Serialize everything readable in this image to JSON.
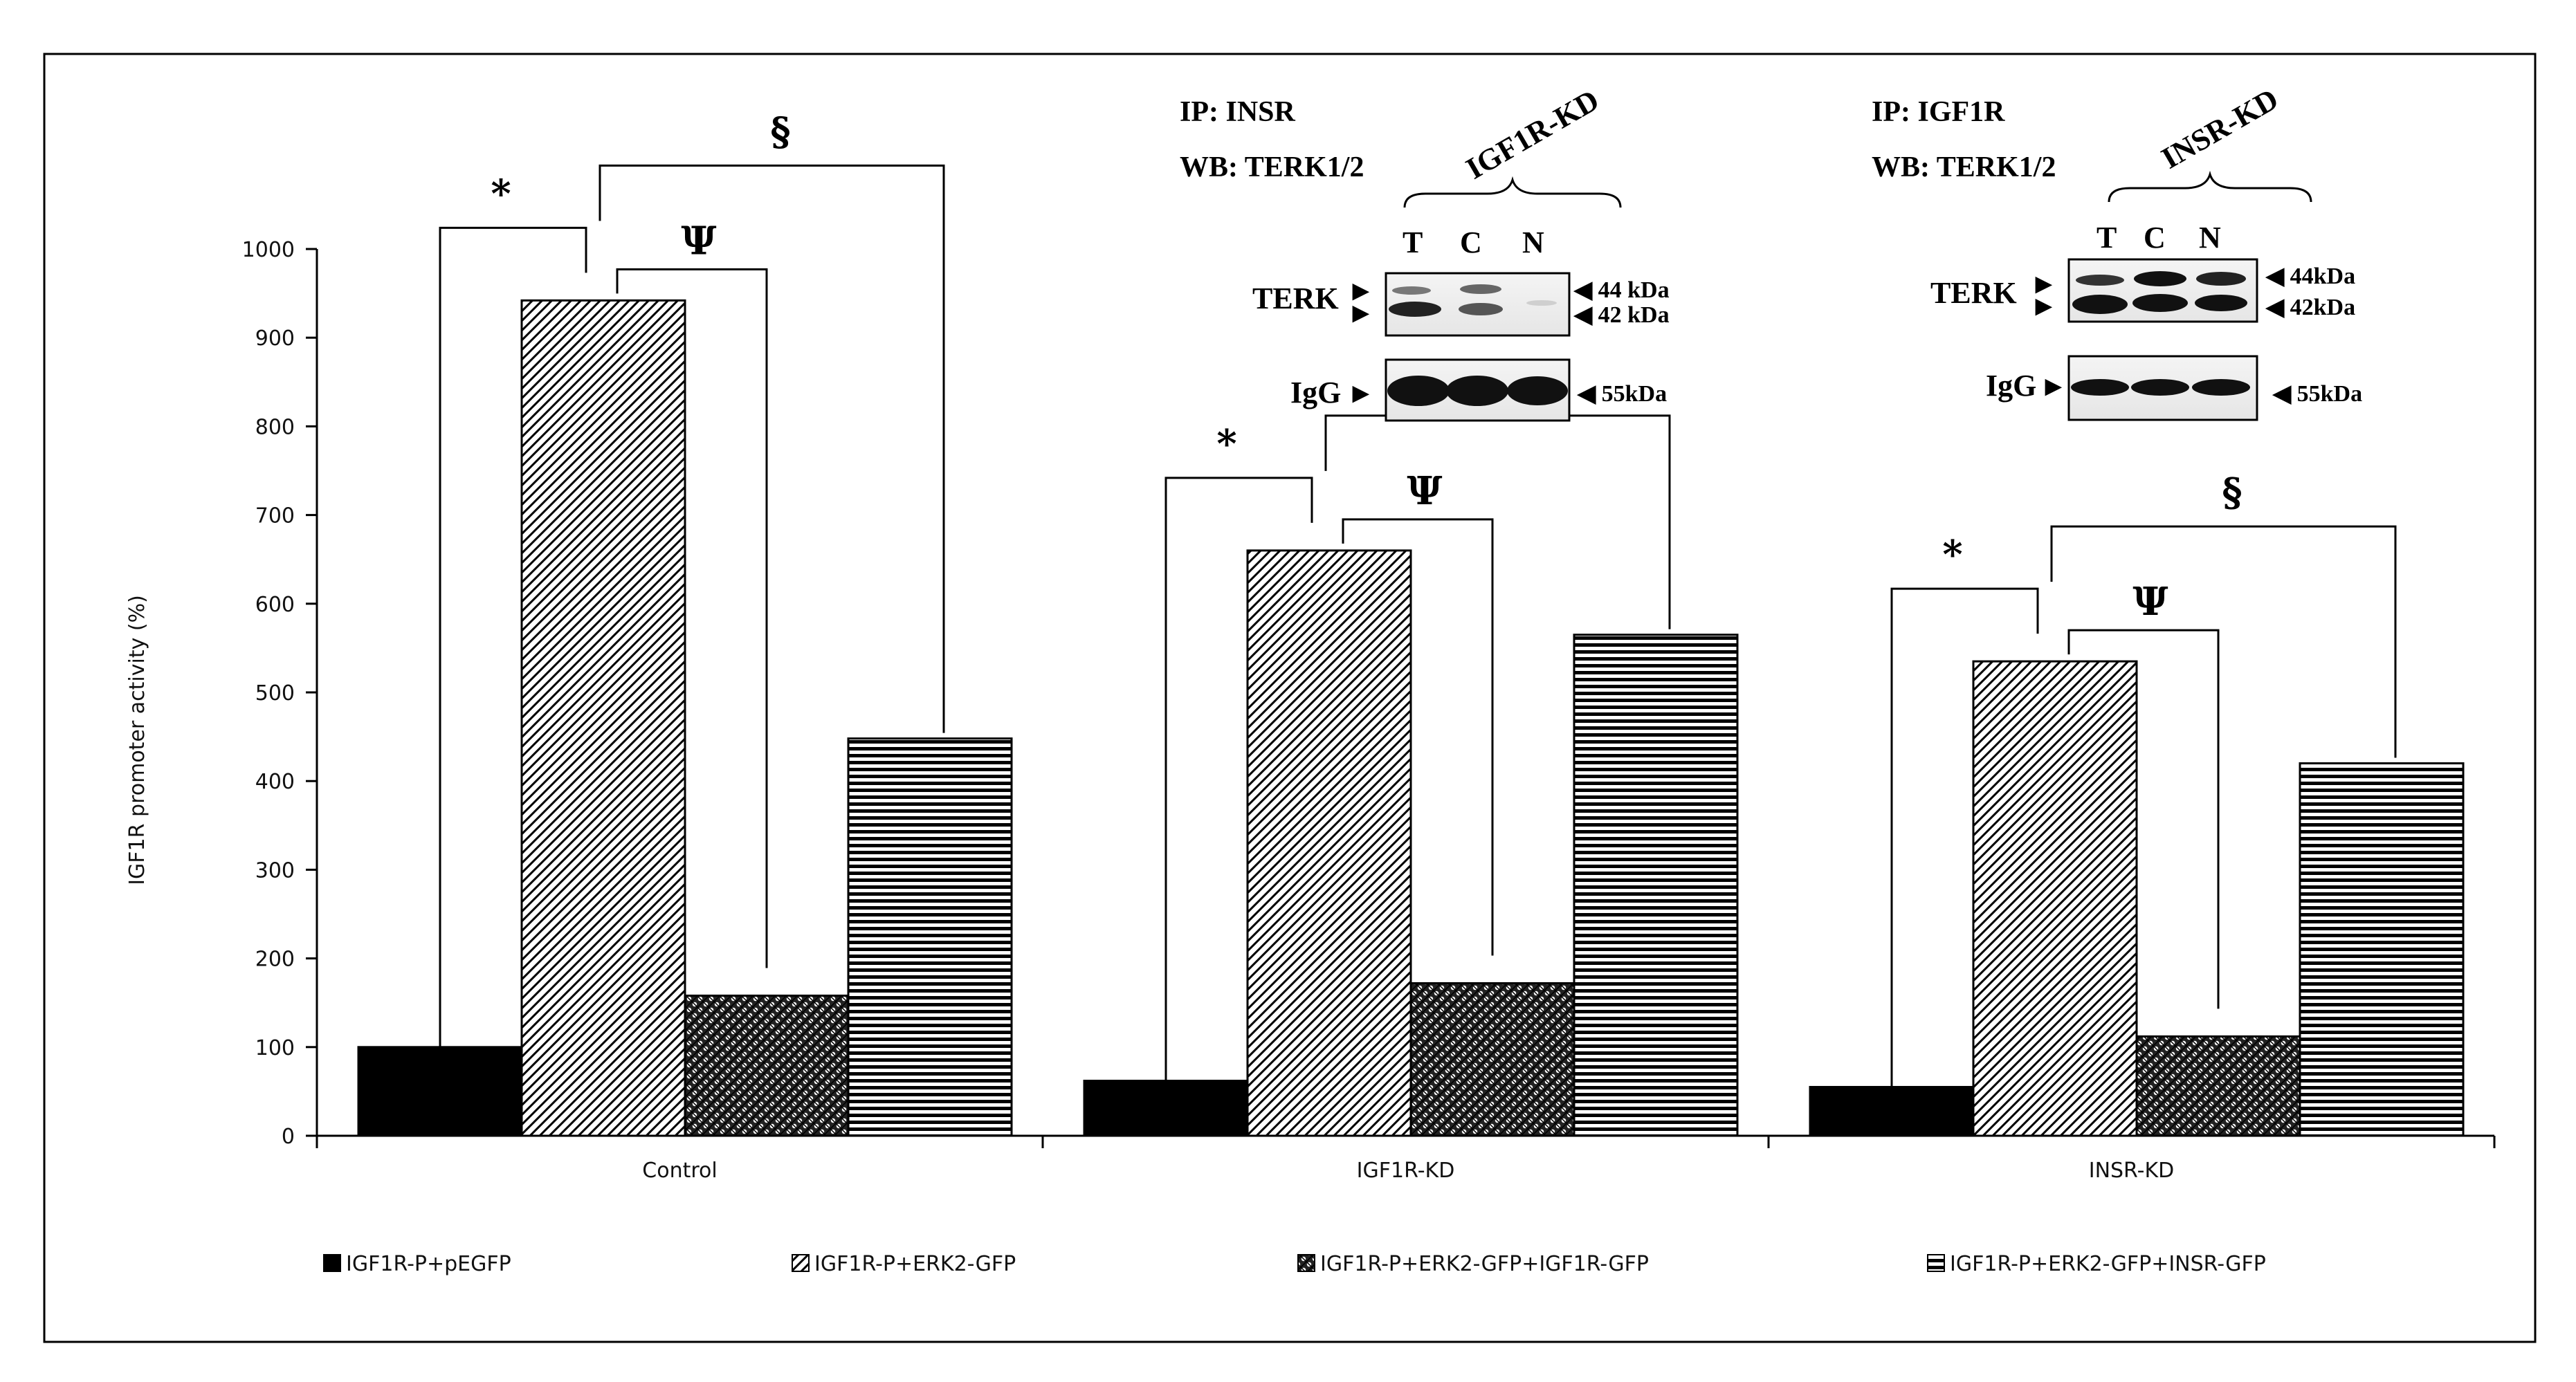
{
  "chart_data": {
    "type": "bar",
    "categories": [
      "Control",
      "IGF1R-KD",
      "INSR-KD"
    ],
    "ylabel": "IGF1R promoter activity (%)",
    "xlabel": "",
    "ylim": [
      0,
      1000
    ],
    "yticks": [
      0,
      100,
      200,
      300,
      400,
      500,
      600,
      700,
      800,
      900,
      1000
    ],
    "grid": false,
    "legend_position": "bottom",
    "series": [
      {
        "name": "IGF1R-P+pEGFP",
        "values": [
          100,
          62,
          55
        ],
        "pattern": "solid"
      },
      {
        "name": "IGF1R-P+ERK2-GFP",
        "values": [
          942,
          660,
          535
        ],
        "pattern": "diagonal"
      },
      {
        "name": "IGF1R-P+ERK2-GFP+IGF1R-GFP",
        "values": [
          158,
          172,
          112
        ],
        "pattern": "checker"
      },
      {
        "name": "IGF1R-P+ERK2-GFP+INSR-GFP",
        "values": [
          448,
          565,
          420
        ],
        "pattern": "horizontal"
      }
    ],
    "significance_brackets": [
      {
        "symbol": "*",
        "pairs": "series1-series2"
      },
      {
        "symbol": "Ψ",
        "pairs": "series2-series3"
      },
      {
        "symbol": "§",
        "pairs": "series2-series4"
      }
    ]
  },
  "insets": [
    {
      "ip": "IP: INSR",
      "wb": "WB: TERK1/2",
      "condition": "IGF1R-KD",
      "lanes": [
        "T",
        "C",
        "N"
      ],
      "band1": "TERK",
      "band1_markers": [
        "◀ 44 kDa",
        "◀ 42 kDa"
      ],
      "band2": "IgG",
      "band2_marker": "◀ 55kDa"
    },
    {
      "ip": "IP: IGF1R",
      "wb": "WB: TERK1/2",
      "condition": "INSR-KD",
      "lanes": [
        "T",
        "C",
        "N"
      ],
      "band1": "TERK",
      "band1_markers": [
        "◀ 44kDa",
        "◀ 42kDa"
      ],
      "band2": "IgG",
      "band2_marker": "◀ 55kDa"
    }
  ]
}
